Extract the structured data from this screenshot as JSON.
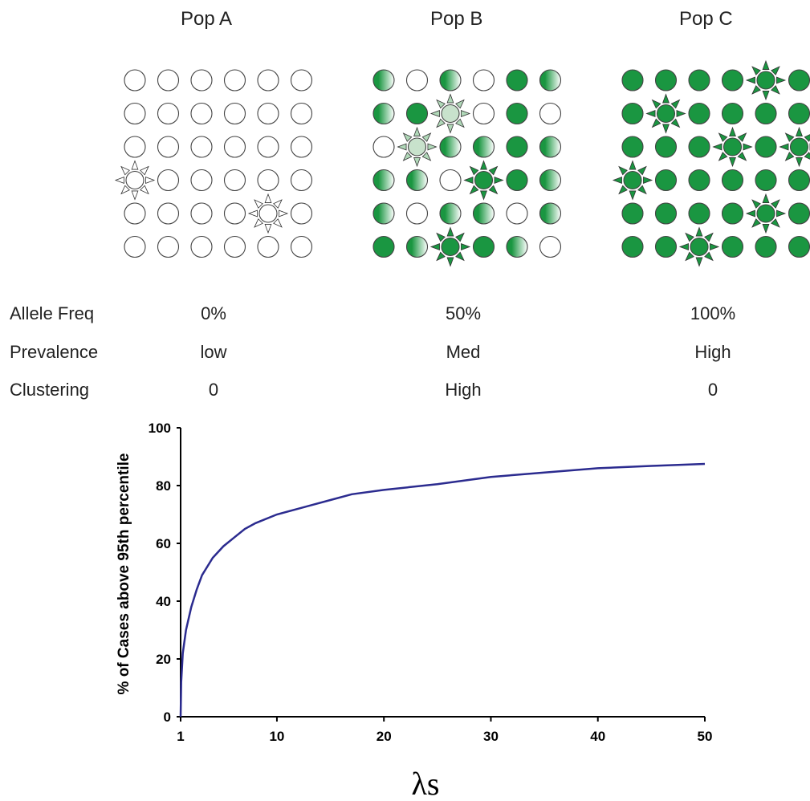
{
  "populations": [
    {
      "name": "Pop A",
      "allele_freq": "0%",
      "prevalence": "low",
      "clustering": "0"
    },
    {
      "name": "Pop B",
      "allele_freq": "50%",
      "prevalence": "Med",
      "clustering": "High"
    },
    {
      "name": "Pop C",
      "allele_freq": "100%",
      "prevalence": "High",
      "clustering": "0"
    }
  ],
  "row_labels": {
    "allele_freq": "Allele Freq",
    "prevalence": "Prevalence",
    "clustering": "Clustering"
  },
  "grids": [
    {
      "cells": [
        [
          "w",
          "w",
          "w",
          "w",
          "w",
          "w"
        ],
        [
          "w",
          "w",
          "w",
          "w",
          "w",
          "w"
        ],
        [
          "w",
          "w",
          "w",
          "w",
          "w",
          "w"
        ],
        [
          "w*",
          "w",
          "w",
          "w",
          "w",
          "w"
        ],
        [
          "w",
          "w",
          "w",
          "w",
          "w*",
          "w"
        ],
        [
          "w",
          "w",
          "w",
          "w",
          "w",
          "w"
        ]
      ]
    },
    {
      "cells": [
        [
          "h",
          "w",
          "h",
          "w",
          "g",
          "h"
        ],
        [
          "h",
          "g",
          "h*",
          "w",
          "g",
          "w"
        ],
        [
          "w",
          "h*",
          "h",
          "h",
          "g",
          "h"
        ],
        [
          "h",
          "h",
          "w",
          "g*",
          "g",
          "h"
        ],
        [
          "h",
          "w",
          "h",
          "h",
          "w",
          "h"
        ],
        [
          "g",
          "h",
          "g*",
          "g",
          "h",
          "w"
        ]
      ]
    },
    {
      "cells": [
        [
          "g",
          "g",
          "g",
          "g",
          "g*",
          "g"
        ],
        [
          "g",
          "g*",
          "g",
          "g",
          "g",
          "g"
        ],
        [
          "g",
          "g",
          "g",
          "g*",
          "g",
          "g*"
        ],
        [
          "g*",
          "g",
          "g",
          "g",
          "g",
          "g"
        ],
        [
          "g",
          "g",
          "g",
          "g",
          "g*",
          "g"
        ],
        [
          "g",
          "g",
          "g*",
          "g",
          "g",
          "g"
        ]
      ]
    }
  ],
  "legend_colors": {
    "green": "#1a9641",
    "white": "#ffffff",
    "line": "#2b2b8f"
  },
  "chart_data": {
    "type": "line",
    "xlabel": "λs",
    "ylabel": "% of Cases above 95th percentile",
    "xlim": [
      1,
      50
    ],
    "ylim": [
      0,
      100
    ],
    "xticks": [
      1,
      10,
      20,
      30,
      40,
      50
    ],
    "yticks": [
      0,
      20,
      40,
      60,
      80,
      100
    ],
    "grid": false,
    "series": [
      {
        "x": [
          1,
          1.05,
          1.2,
          1.5,
          2,
          2.5,
          3,
          4,
          5,
          6,
          7,
          8,
          10,
          12,
          15,
          17,
          20,
          25,
          30,
          35,
          40,
          45,
          50
        ],
        "y": [
          0,
          12,
          22,
          30,
          38,
          44,
          49,
          55,
          59,
          62,
          65,
          67,
          70,
          72,
          75,
          77,
          78.5,
          80.5,
          83,
          84.5,
          86,
          86.8,
          87.5
        ]
      }
    ]
  }
}
